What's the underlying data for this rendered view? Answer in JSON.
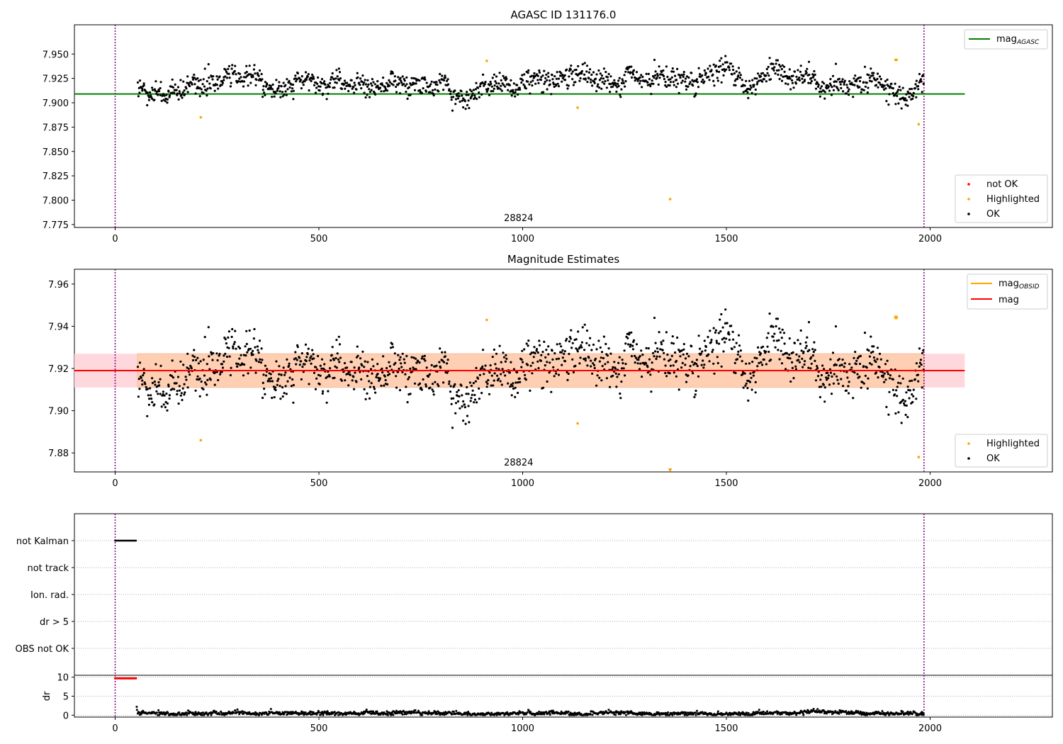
{
  "chart_data": [
    {
      "type": "scatter",
      "title": "AGASC ID 131176.0",
      "xlim": [
        -100,
        2300
      ],
      "ylim": [
        7.772,
        7.98
      ],
      "x_ticks": [
        0,
        500,
        1000,
        1500,
        2000
      ],
      "y_ticks": [
        7.775,
        7.8,
        7.825,
        7.85,
        7.875,
        7.9,
        7.925,
        7.95
      ],
      "y_tick_labels": [
        "7.775",
        "7.800",
        "7.825",
        "7.850",
        "7.875",
        "7.900",
        "7.925",
        "7.950"
      ],
      "vlines": [
        0,
        1985
      ],
      "obsid_label": {
        "x": 990,
        "text": "28824"
      },
      "lines": [
        {
          "name": "mag_AGASC",
          "name_main": "mag",
          "name_sub": "AGASC",
          "y": 7.909,
          "x": [
            -100,
            2085
          ],
          "color": "#008000"
        }
      ],
      "scatter_series": [
        {
          "name": "not OK",
          "color": "#ff0000",
          "points": []
        },
        {
          "name": "Highlighted",
          "color": "#ffa500",
          "points": [
            [
              210,
              7.885
            ],
            [
              912,
              7.943
            ],
            [
              1135,
              7.895
            ],
            [
              1362,
              7.801
            ],
            [
              1915,
              7.944
            ],
            [
              1918,
              7.944
            ],
            [
              1972,
              7.878
            ]
          ]
        },
        {
          "name": "OK",
          "color": "#000000",
          "generated": {
            "x_start": 55,
            "x_end": 1985,
            "n": 1350,
            "mean": 7.918,
            "noise": 0.0055,
            "seed": 1
          }
        }
      ],
      "legend_lines_position": "upper right",
      "legend_points_position": "lower right"
    },
    {
      "type": "scatter",
      "title": "Magnitude Estimates",
      "xlim": [
        -100,
        2300
      ],
      "ylim": [
        7.871,
        7.967
      ],
      "x_ticks": [
        0,
        500,
        1000,
        1500,
        2000
      ],
      "y_ticks": [
        7.88,
        7.9,
        7.92,
        7.94,
        7.96
      ],
      "y_tick_labels": [
        "7.88",
        "7.90",
        "7.92",
        "7.94",
        "7.96"
      ],
      "vlines": [
        0,
        1985
      ],
      "obsid_label": {
        "x": 990,
        "text": "28824"
      },
      "band": {
        "y_low": 7.911,
        "y_high": 7.927,
        "x_start": 55,
        "x_end": 1985,
        "color": "#ffcfb3"
      },
      "pink_band": {
        "y_low": 7.911,
        "y_high": 7.927,
        "x": [
          -100,
          2085
        ],
        "color": "#ffd8dd"
      },
      "lines": [
        {
          "name": "mag_OBSID",
          "name_main": "mag",
          "name_sub": "OBSID",
          "y": 7.919,
          "x": [
            55,
            1985
          ],
          "color": "#ffa500"
        },
        {
          "name": "mag",
          "name_main": "mag",
          "name_sub": "",
          "y": 7.919,
          "x": [
            -100,
            2085
          ],
          "color": "#ff0000"
        }
      ],
      "scatter_series": [
        {
          "name": "Highlighted",
          "color": "#ffa500",
          "points": [
            [
              210,
              7.886
            ],
            [
              912,
              7.943
            ],
            [
              1135,
              7.894
            ],
            [
              1362,
              7.872
            ],
            [
              1915,
              7.944
            ],
            [
              1918,
              7.944
            ],
            [
              1972,
              7.878
            ]
          ]
        },
        {
          "name": "OK",
          "color": "#000000",
          "generated": {
            "x_start": 55,
            "x_end": 1985,
            "n": 1350,
            "mean": 7.918,
            "noise": 0.0055,
            "seed": 1
          }
        }
      ],
      "legend_lines_position": "upper right",
      "legend_points_position": "lower right"
    },
    {
      "type": "scatter",
      "title": "",
      "xlim": [
        -100,
        2300
      ],
      "categories": [
        "not Kalman",
        "not track",
        "Ion. rad.",
        "dr > 5",
        "OBS not OK"
      ],
      "flags": [
        {
          "category": "not Kalman",
          "x_start": 0,
          "x_end": 52,
          "color": "#000000"
        }
      ],
      "vlines": [
        0,
        1985
      ],
      "grid": true
    },
    {
      "type": "scatter",
      "title": "",
      "ylabel": "dr",
      "xlim": [
        -100,
        2300
      ],
      "ylim": [
        -0.5,
        10.5
      ],
      "x_ticks": [
        0,
        500,
        1000,
        1500,
        2000
      ],
      "y_ticks": [
        0,
        5,
        10
      ],
      "y_tick_labels": [
        "0",
        "5",
        "10"
      ],
      "vlines": [
        0,
        1985
      ],
      "grid": true,
      "scatter_series": [
        {
          "name": "dr not OK",
          "color": "#ff0000",
          "x_start": 0,
          "x_end": 52,
          "y": 9.7
        },
        {
          "name": "dr OK",
          "color": "#000000",
          "generated": {
            "x_start": 52,
            "x_end": 1985,
            "n": 1350,
            "mean": 0.6,
            "noise": 0.25,
            "seed": 7
          }
        }
      ]
    }
  ]
}
